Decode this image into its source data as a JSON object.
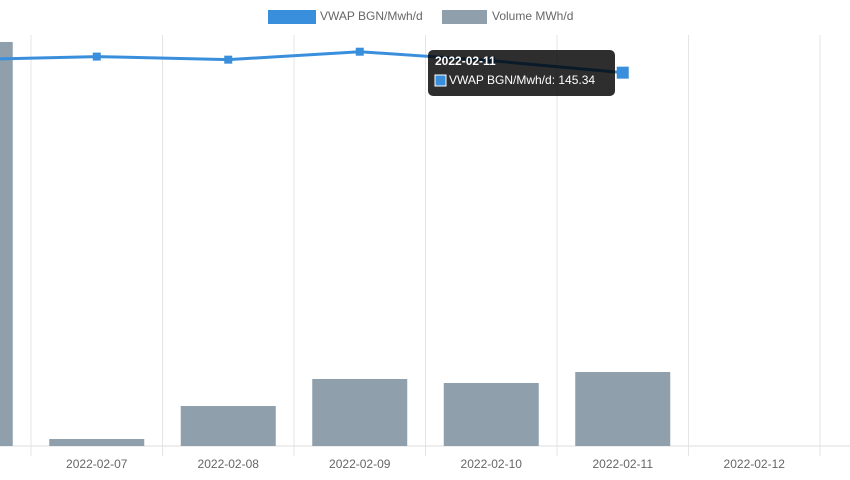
{
  "chart_data": {
    "type": "bar-line",
    "categories": [
      null,
      "2022-02-07",
      "2022-02-08",
      "2022-02-09",
      "2022-02-10",
      "2022-02-11",
      "2022-02-12"
    ],
    "series": [
      {
        "name": "VWAP BGN/Mwh/d",
        "type": "line",
        "color": "#3a8fdc",
        "axis": "y",
        "values": [
          150.4,
          151.6,
          150.4,
          153.5,
          150.0,
          145.34,
          null
        ]
      },
      {
        "name": "Volume MWh/d",
        "type": "bar",
        "color": "#8f9fab",
        "axis": "y2",
        "values": [
          9830,
          170,
          973,
          1630,
          1533,
          1800,
          null
        ]
      }
    ],
    "ylim": [
      0,
      160
    ],
    "y2lim": [
      0,
      10000
    ],
    "grid": true,
    "legend": "top",
    "tooltip_index": 5
  }
}
